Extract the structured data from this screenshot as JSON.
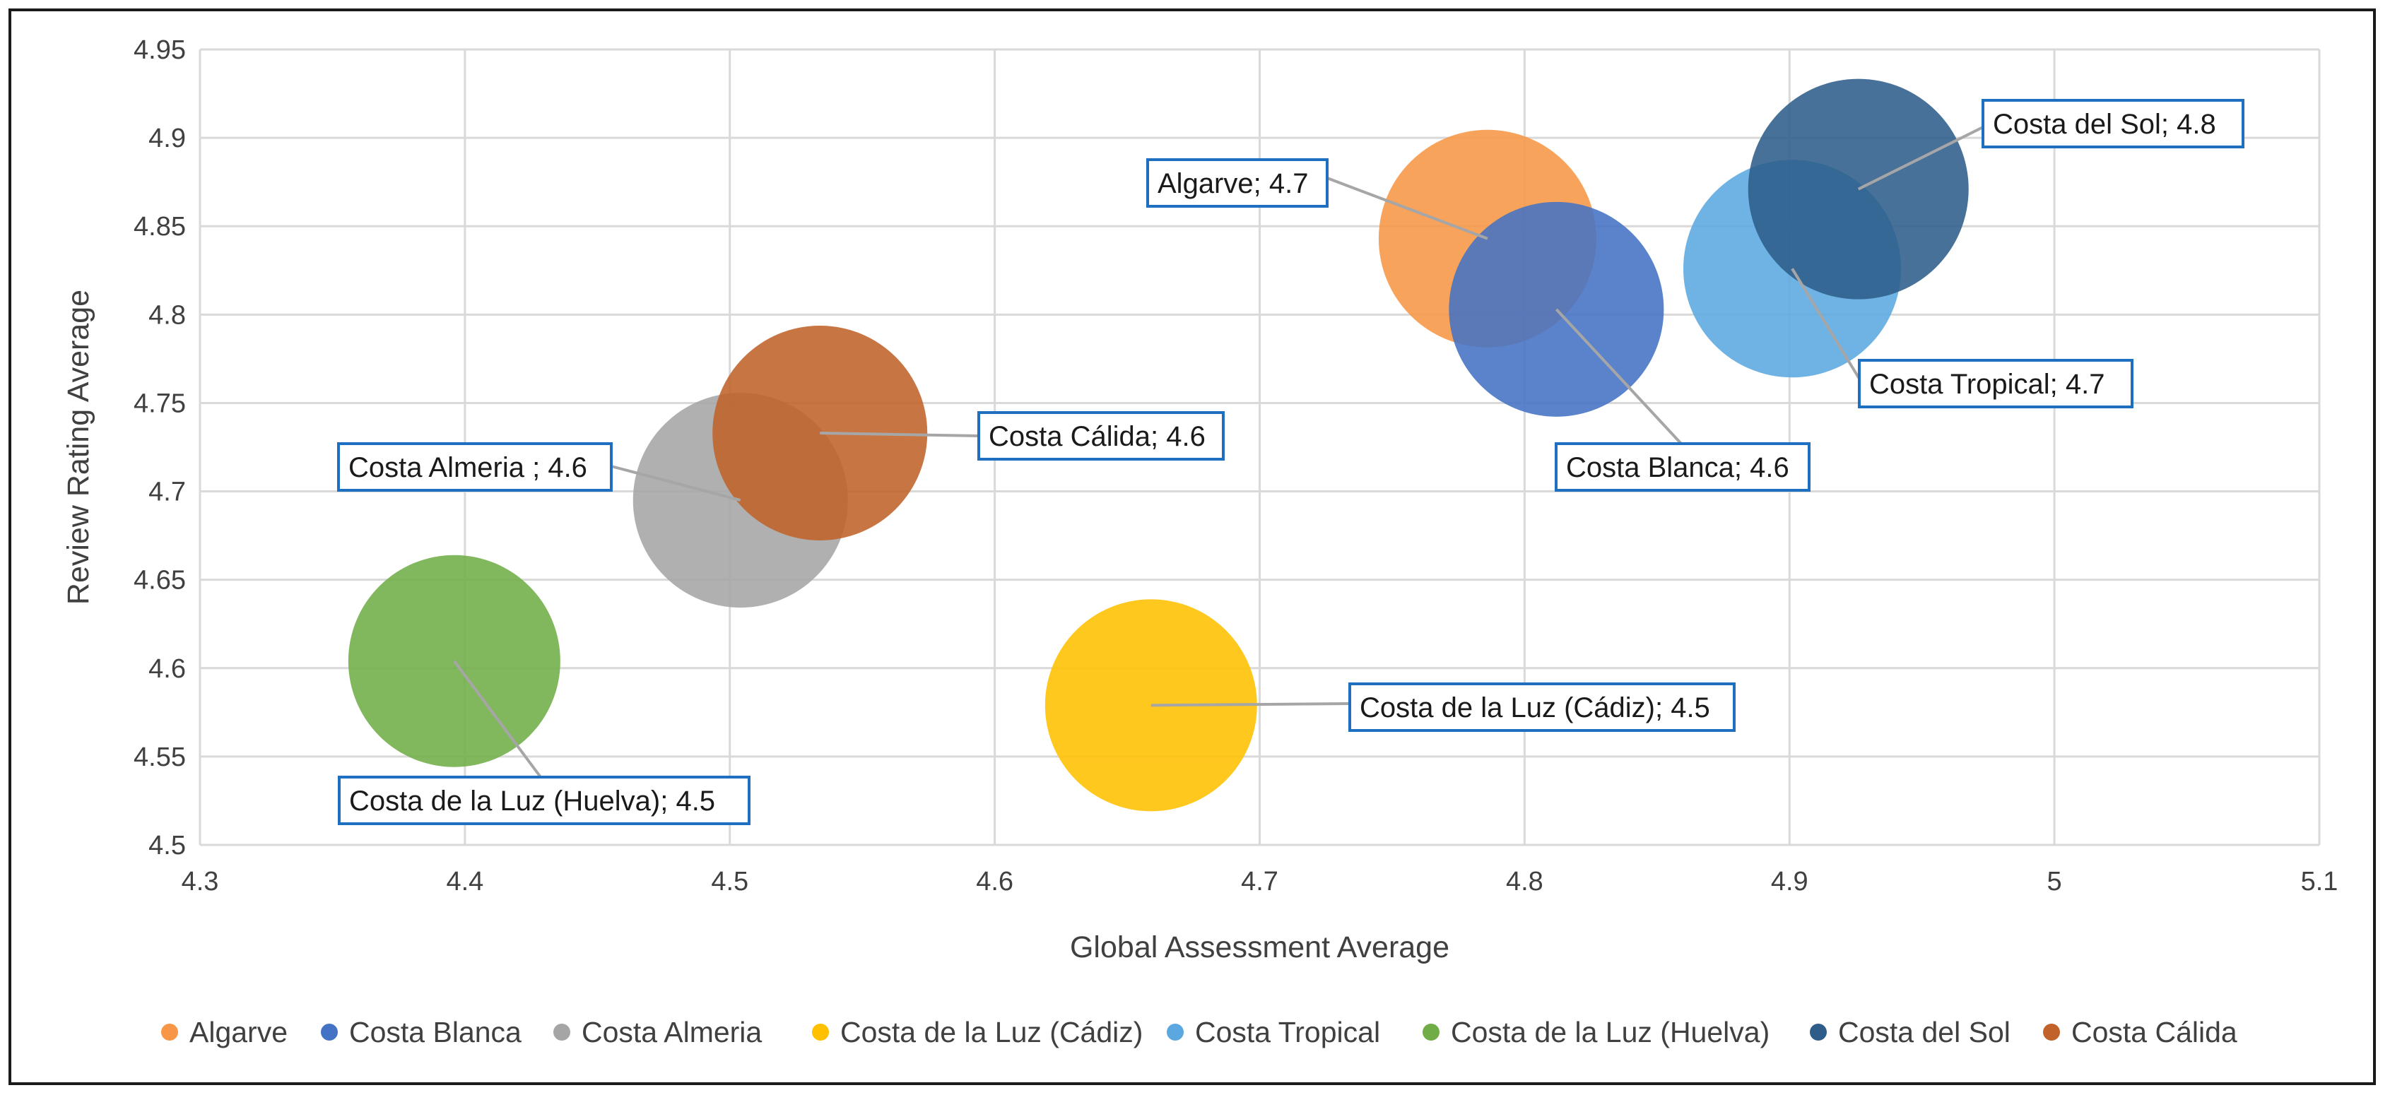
{
  "chart_data": {
    "type": "bubble",
    "title": "",
    "xlabel": "Global Assessment Average",
    "ylabel": "Review Rating Average",
    "xlim": [
      4.3,
      5.1
    ],
    "ylim": [
      4.5,
      4.95
    ],
    "xticks": [
      "4.3",
      "4.4",
      "4.5",
      "4.6",
      "4.7",
      "4.8",
      "4.9",
      "5",
      "5.1"
    ],
    "yticks": [
      "4.5",
      "4.55",
      "4.6",
      "4.65",
      "4.7",
      "4.75",
      "4.8",
      "4.85",
      "4.9",
      "4.95"
    ],
    "grid": true,
    "legend_position": "bottom",
    "series": [
      {
        "name": "Algarve",
        "x": 4.786,
        "y": 4.843,
        "size": 4.7,
        "label": "Algarve; 4.7",
        "color": "#F79646"
      },
      {
        "name": "Costa Blanca",
        "x": 4.812,
        "y": 4.803,
        "size": 4.6,
        "label": "Costa Blanca; 4.6",
        "color": "#4472C4"
      },
      {
        "name": "Costa Almeria",
        "x": 4.504,
        "y": 4.695,
        "size": 4.6,
        "label": "Costa Almeria ; 4.6",
        "color": "#A5A5A5"
      },
      {
        "name": "Costa de la Luz (Cádiz)",
        "x": 4.659,
        "y": 4.579,
        "size": 4.5,
        "label": "Costa de la Luz (Cádiz); 4.5",
        "color": "#FFC000"
      },
      {
        "name": "Costa Tropical",
        "x": 4.901,
        "y": 4.826,
        "size": 4.7,
        "label": "Costa Tropical; 4.7",
        "color": "#5BA8E0"
      },
      {
        "name": "Costa de la Luz (Huelva)",
        "x": 4.396,
        "y": 4.604,
        "size": 4.5,
        "label": "Costa de la Luz (Huelva); 4.5",
        "color": "#70AD47"
      },
      {
        "name": "Costa del Sol",
        "x": 4.926,
        "y": 4.871,
        "size": 4.8,
        "label": "Costa del Sol; 4.8",
        "color": "#2E5D8A"
      },
      {
        "name": "Costa Cálida",
        "x": 4.534,
        "y": 4.733,
        "size": 4.6,
        "label": "Costa Cálida; 4.6",
        "color": "#C0622A"
      }
    ]
  }
}
